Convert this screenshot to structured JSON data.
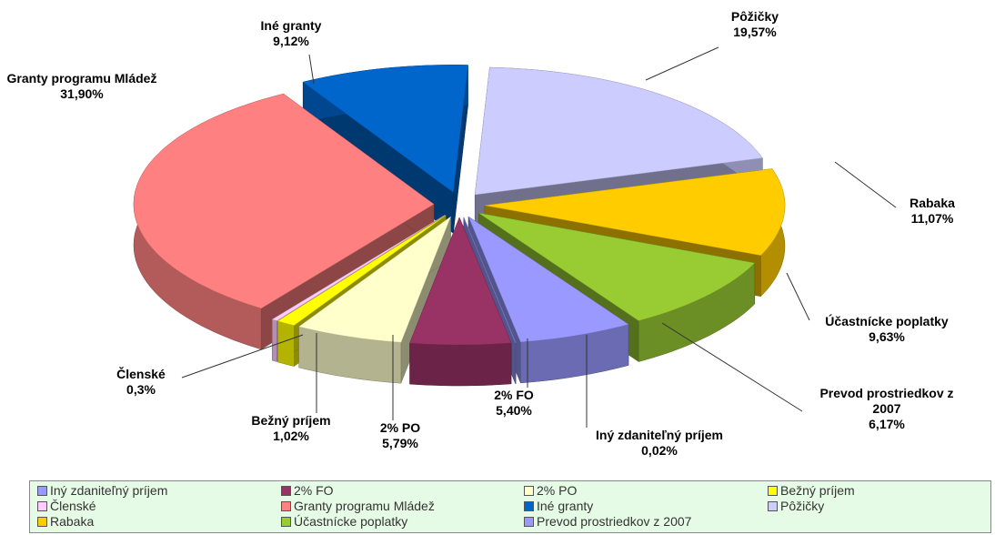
{
  "chart_data": {
    "type": "pie3d",
    "categories": [
      "Iný zdaniteľný príjem",
      "2% FO",
      "2% PO",
      "Bežný príjem",
      "Členské",
      "Granty programu Mládež",
      "Iné granty",
      "Pôžičky",
      "Rabaka",
      "Účastnícke poplatky",
      "Prevod prostriedkov z 2007"
    ],
    "values": [
      0.02,
      5.4,
      5.79,
      1.02,
      0.3,
      31.9,
      9.12,
      19.57,
      11.07,
      9.63,
      6.17
    ],
    "value_labels": [
      "0,02%",
      "5,40%",
      "5,79%",
      "1,02%",
      "0,3%",
      "31,90%",
      "9,12%",
      "19,57%",
      "11,07%",
      "9,63%",
      "6,17%"
    ],
    "colors": [
      "#9999ff",
      "#993366",
      "#ffffcc",
      "#ffff00",
      "#ffccff",
      "#ff8080",
      "#0066cc",
      "#ccccff",
      "#ffcc00",
      "#99cc33",
      "#9999ff"
    ],
    "legend": "bottom"
  }
}
